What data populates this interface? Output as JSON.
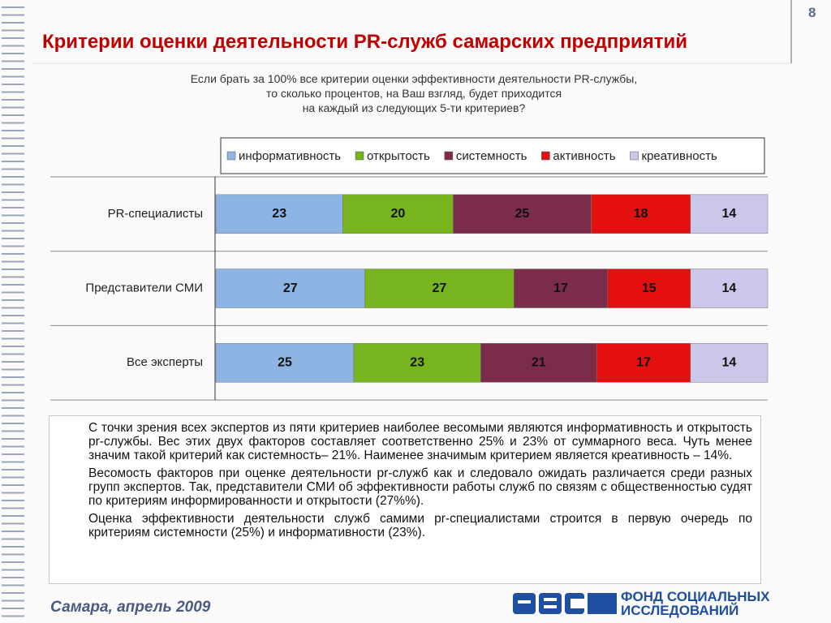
{
  "slide": {
    "page_number": "8",
    "title": "Критерии оценки деятельности PR-служб самарских предприятий",
    "question": [
      "Если брать за 100% все критерии оценки эффективности деятельности PR-службы,",
      "то сколько процентов, на Ваш взгляд, будет приходится",
      "на каждый из следующих  5-ти критериев?"
    ],
    "paragraphs": [
      "С точки зрения всех экспертов из пяти критериев  наиболее весомыми являются информативность и открытость pr-службы. Вес этих двух факторов составляет соответственно 25% и 23% от суммарного веса. Чуть  менее значим такой критерий как системность– 21%. Наименее значимым критерием является креативность  – 14%.",
      "Весомость факторов при оценке деятельности pr-служб как и следовало ожидать различается среди разных групп экспертов. Так, представители СМИ об эффективности работы служб по связям с общественностью судят по критериям  информированности и открытости (27%%).",
      "Оценка эффективности деятельности служб самими pr-специалистами строится в первую очередь по критериям системности  (25%) и информативности  (23%)."
    ],
    "footer": "Самара, апрель 2009",
    "logo": [
      "ФОНД СОЦИАЛЬНЫХ",
      "ИССЛЕДОВАНИЙ"
    ]
  },
  "chart_data": {
    "type": "stacked-bar-horizontal",
    "categories": [
      "PR-специалисты",
      "Представители СМИ",
      "Все эксперты"
    ],
    "series": [
      {
        "name": "информативность",
        "color": "#8db4e2",
        "values": [
          23,
          27,
          25
        ]
      },
      {
        "name": "открытость",
        "color": "#77b41e",
        "values": [
          20,
          27,
          23
        ]
      },
      {
        "name": "системность",
        "color": "#7b2c4a",
        "values": [
          25,
          17,
          21
        ]
      },
      {
        "name": "активность",
        "color": "#e41010",
        "values": [
          18,
          15,
          17
        ]
      },
      {
        "name": "креативность",
        "color": "#cbc7ea",
        "values": [
          14,
          14,
          14
        ]
      }
    ]
  }
}
